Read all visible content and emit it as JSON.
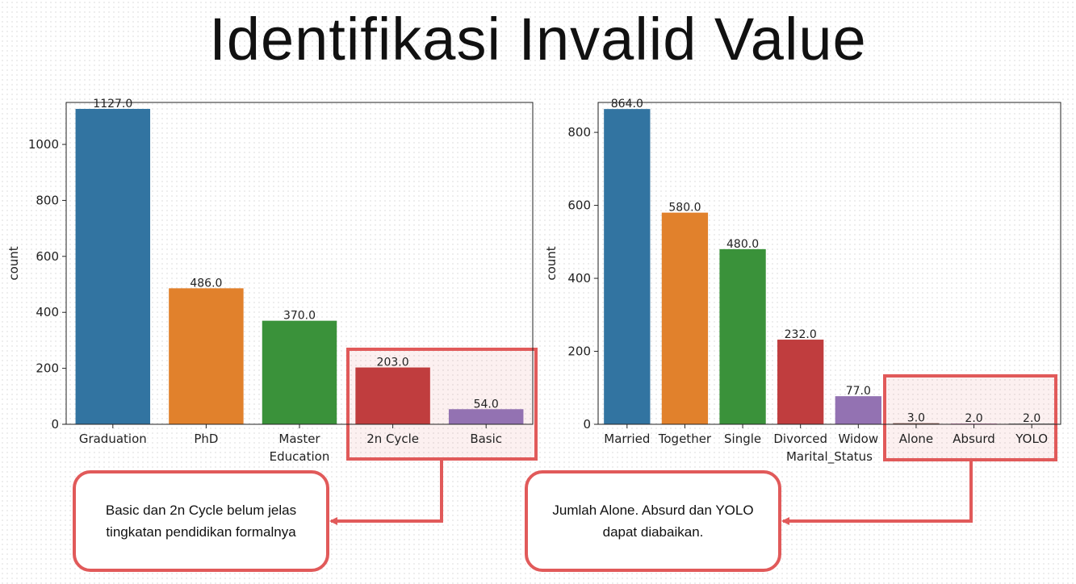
{
  "slide": {
    "title": "Identifikasi Invalid Value",
    "callout_left": {
      "line1": "Basic dan 2n Cycle belum jelas",
      "line2": "tingkatan pendidikan formalnya"
    },
    "callout_right": {
      "line1": "Jumlah Alone. Absurd dan YOLO",
      "line2": "dapat diabaikan."
    },
    "highlight_color": "#e15a5a"
  },
  "chart_data": [
    {
      "type": "bar",
      "title": "",
      "xlabel": "Education",
      "ylabel": "count",
      "categories": [
        "Graduation",
        "PhD",
        "Master",
        "2n Cycle",
        "Basic"
      ],
      "values": [
        1127,
        486,
        370,
        203,
        54
      ],
      "value_labels": [
        "1127.0",
        "486.0",
        "370.0",
        "203.0",
        "54.0"
      ],
      "colors": [
        "#3274a1",
        "#e1812c",
        "#3a923a",
        "#c03d3e",
        "#9372b2"
      ],
      "ylim": [
        0,
        1150
      ],
      "yticks": [
        0,
        200,
        400,
        600,
        800,
        1000
      ],
      "grid": false,
      "highlighted_categories": [
        "2n Cycle",
        "Basic"
      ]
    },
    {
      "type": "bar",
      "title": "",
      "xlabel": "Marital_Status",
      "ylabel": "count",
      "categories": [
        "Married",
        "Together",
        "Single",
        "Divorced",
        "Widow",
        "Alone",
        "Absurd",
        "YOLO"
      ],
      "values": [
        864,
        580,
        480,
        232,
        77,
        3,
        2,
        2
      ],
      "value_labels": [
        "864.0",
        "580.0",
        "480.0",
        "232.0",
        "77.0",
        "3.0",
        "2.0",
        "2.0"
      ],
      "colors": [
        "#3274a1",
        "#e1812c",
        "#3a923a",
        "#c03d3e",
        "#9372b2",
        "#845b53",
        "#d684bd",
        "#7f7f7f"
      ],
      "ylim": [
        0,
        882
      ],
      "yticks": [
        0,
        200,
        400,
        600,
        800
      ],
      "grid": false,
      "highlighted_categories": [
        "Alone",
        "Absurd",
        "YOLO"
      ]
    }
  ]
}
